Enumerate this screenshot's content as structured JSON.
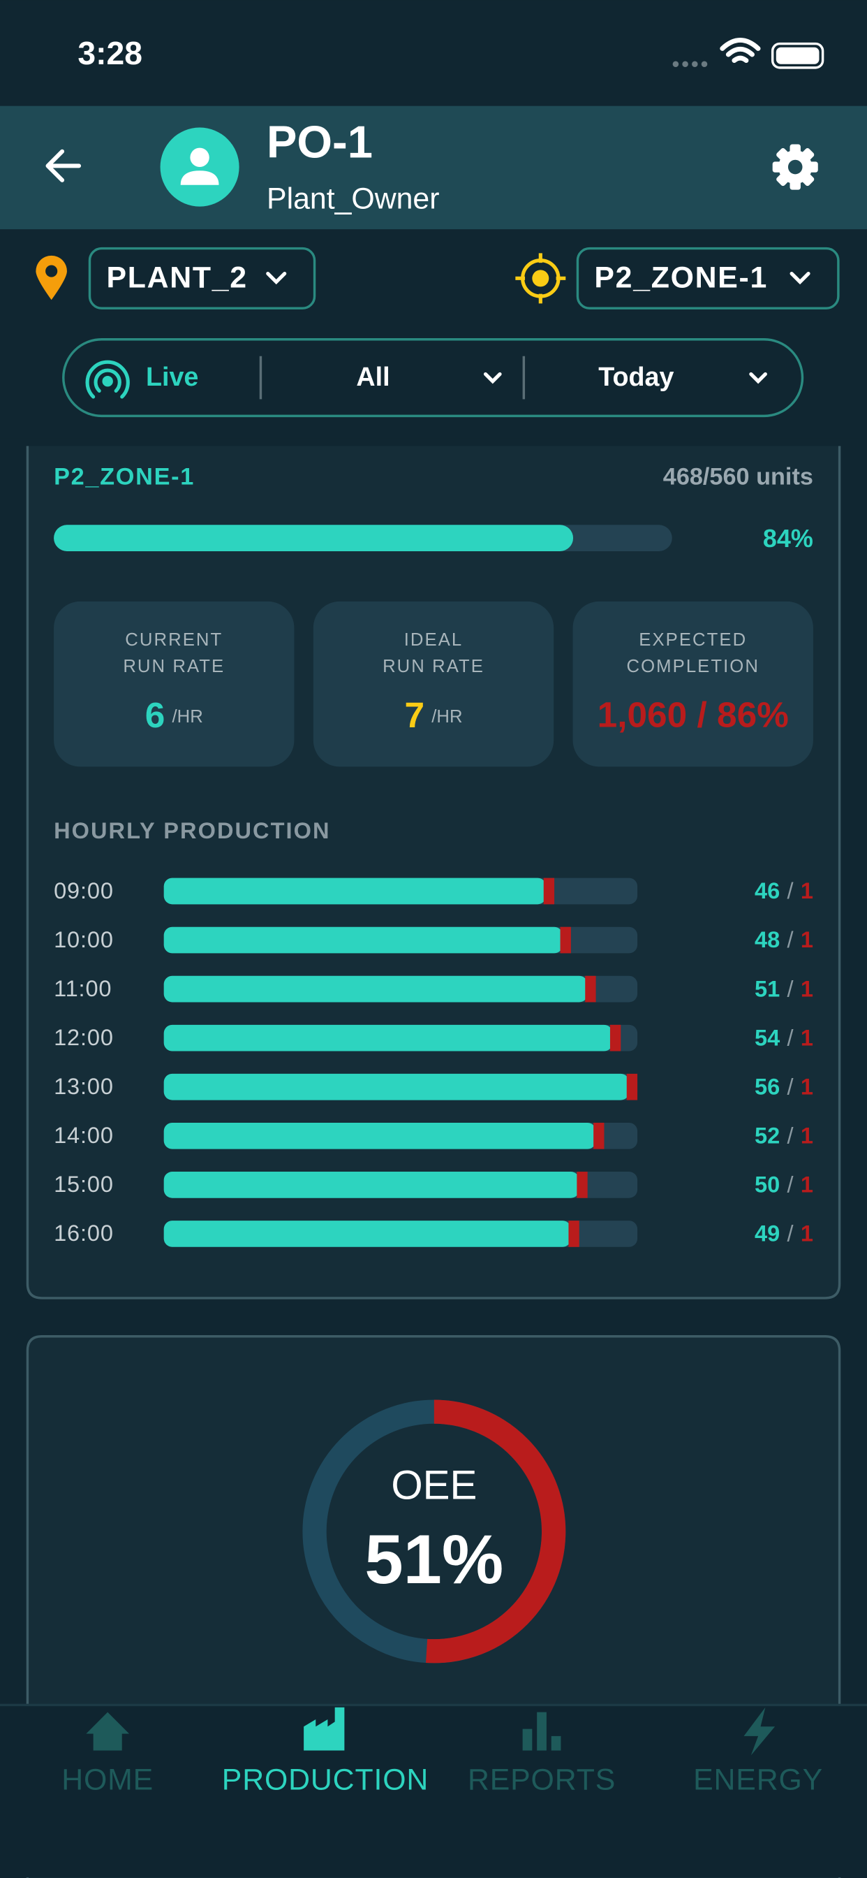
{
  "status_bar": {
    "time": "3:28"
  },
  "header": {
    "title": "PO-1",
    "subtitle": "Plant_Owner"
  },
  "filters": {
    "plant": "PLANT_2",
    "zone": "P2_ZONE-1"
  },
  "toolbar": {
    "live": "Live",
    "type": "All",
    "period": "Today"
  },
  "zone_card": {
    "zone": "P2_ZONE-1",
    "units": "468/560 units",
    "progress": {
      "value": 84,
      "label": "84%"
    },
    "tiles": [
      {
        "label_lines": [
          "CURRENT",
          "RUN RATE"
        ],
        "value": 6,
        "unit": "/HR"
      },
      {
        "label_lines": [
          "IDEAL",
          "RUN RATE"
        ],
        "value": 7,
        "unit": "/HR"
      },
      {
        "label_lines": [
          "EXPECTED",
          "COMPLETION"
        ],
        "value": "1,060 / 86%"
      }
    ],
    "hourly_title": "HOURLY PRODUCTION",
    "count_separator": "/",
    "hourly": [
      {
        "hour": "09:00",
        "good": 46,
        "reject": 1
      },
      {
        "hour": "10:00",
        "good": 48,
        "reject": 1
      },
      {
        "hour": "11:00",
        "good": 51,
        "reject": 1
      },
      {
        "hour": "12:00",
        "good": 54,
        "reject": 1
      },
      {
        "hour": "13:00",
        "good": 56,
        "reject": 1
      },
      {
        "hour": "14:00",
        "good": 52,
        "reject": 1
      },
      {
        "hour": "15:00",
        "good": 50,
        "reject": 1
      },
      {
        "hour": "16:00",
        "good": 49,
        "reject": 1
      }
    ]
  },
  "oee": {
    "label": "OEE",
    "value": {
      "value": 51,
      "label": "51%"
    }
  },
  "nav": [
    "HOME",
    "PRODUCTION",
    "REPORTS",
    "ENERGY"
  ],
  "active_nav": 1
}
